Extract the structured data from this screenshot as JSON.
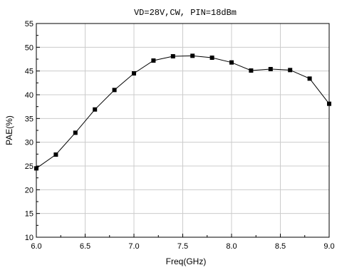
{
  "chart_data": {
    "type": "line",
    "title": "VD=28V,CW, PIN=18dBm",
    "xlabel": "Freq(GHz)",
    "ylabel": "PAE(%)",
    "xlim": [
      6.0,
      9.0
    ],
    "ylim": [
      10,
      55
    ],
    "xticks": [
      6.0,
      6.5,
      7.0,
      7.5,
      8.0,
      8.5,
      9.0
    ],
    "xtick_labels": [
      "6.0",
      "6.5",
      "7.0",
      "7.5",
      "8.0",
      "8.5",
      "9.0"
    ],
    "yticks": [
      10,
      15,
      20,
      25,
      30,
      35,
      40,
      45,
      50,
      55
    ],
    "ytick_labels": [
      "10",
      "15",
      "20",
      "25",
      "30",
      "35",
      "40",
      "45",
      "50",
      "55"
    ],
    "grid": true,
    "marker": "square",
    "series": [
      {
        "x": [
          6.0,
          6.2,
          6.4,
          6.6,
          6.8,
          7.0,
          7.2,
          7.4,
          7.6,
          7.8,
          8.0,
          8.2,
          8.4,
          8.6,
          8.8,
          9.0
        ],
        "values": [
          24.5,
          27.4,
          32.0,
          36.9,
          41.0,
          44.5,
          47.2,
          48.1,
          48.2,
          47.8,
          46.8,
          45.1,
          45.4,
          45.2,
          43.4,
          38.1
        ]
      }
    ],
    "line_color": "#000000",
    "grid_color": "#cccccc"
  }
}
